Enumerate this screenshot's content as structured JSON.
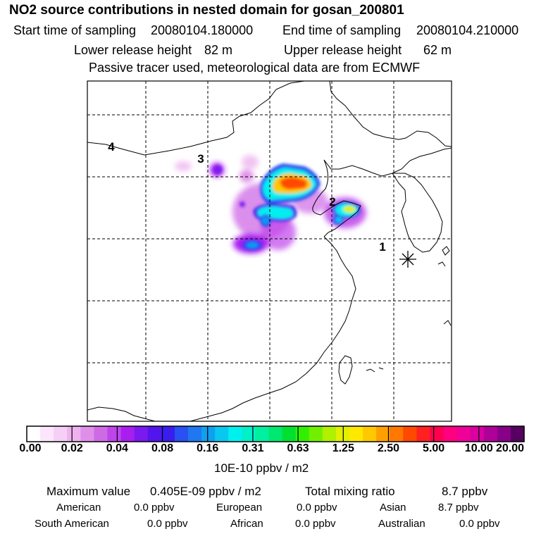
{
  "header": {
    "title": "NO2 source contributions in nested domain for gosan_200801",
    "start_label": "Start time of sampling",
    "start_value": "20080104.180000",
    "end_label": "End time of sampling",
    "end_value": "20080104.210000",
    "lower_label": "Lower release height",
    "lower_value": "82 m",
    "upper_label": "Upper release height",
    "upper_value": "62 m",
    "tracer_note": "Passive tracer used, meteorological data are from ECMWF"
  },
  "map": {
    "point_labels": [
      "1",
      "2",
      "3",
      "4"
    ],
    "receptor_marker": "asterisk-icon"
  },
  "colorbar": {
    "tick_labels": [
      "0.00",
      "0.02",
      "0.04",
      "0.08",
      "0.16",
      "0.31",
      "0.63",
      "1.25",
      "2.50",
      "5.00",
      "10.00",
      "20.00"
    ],
    "unit": "10E-10 ppbv / m2",
    "colors": [
      "#ffffff",
      "#fbe6fb",
      "#f5cff5",
      "#eeb3ef",
      "#e08fe8",
      "#cf6ae5",
      "#bf44eb",
      "#a81ef0",
      "#7a1aef",
      "#5315ee",
      "#3a1ded",
      "#2950f0",
      "#1f78f0",
      "#10a0f0",
      "#08c8f0",
      "#00f0f0",
      "#00f0c8",
      "#00f0a0",
      "#00e870",
      "#00e030",
      "#30f000",
      "#70f000",
      "#b0f000",
      "#e0f000",
      "#ffe800",
      "#ffc800",
      "#ffa000",
      "#ff7800",
      "#ff4800",
      "#ff2020",
      "#ff0050",
      "#ff0080",
      "#f0009a",
      "#d800a0",
      "#b0009a",
      "#880088",
      "#560060"
    ]
  },
  "stats": {
    "max_label": "Maximum value",
    "max_value": "0.405E-09 ppbv / m2",
    "total_label": "Total mixing ratio",
    "total_value": "8.7 ppbv",
    "american_label": "American",
    "american_value": "0.0 ppbv",
    "european_label": "European",
    "european_value": "0.0 ppbv",
    "asian_label": "Asian",
    "asian_value": "8.7 ppbv",
    "south_american_label": "South American",
    "south_american_value": "0.0 ppbv",
    "african_label": "African",
    "african_value": "0.0 ppbv",
    "australian_label": "Australian",
    "australian_value": "0.0 ppbv"
  }
}
